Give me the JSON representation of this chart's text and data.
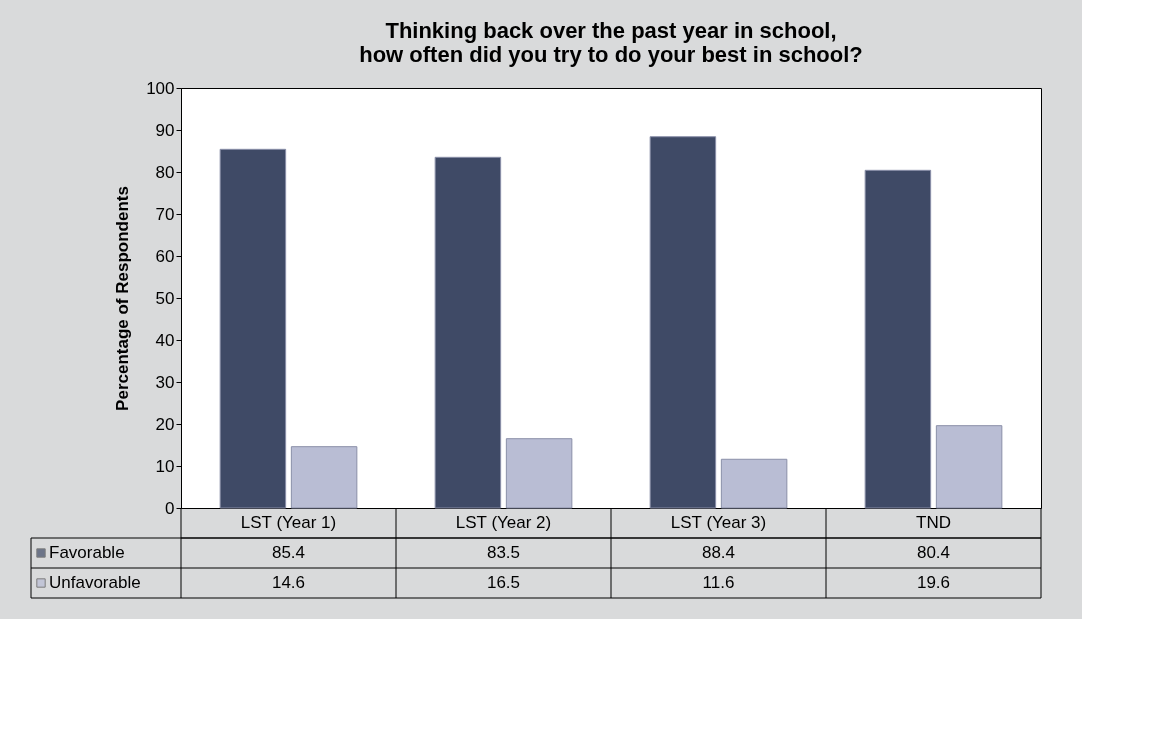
{
  "chart_data": {
    "type": "bar",
    "title": "Thinking back over the past year in school,\nhow often did you try to do your best in school?",
    "ylabel": "Percentage of Respondents",
    "categories": [
      "LST (Year 1)",
      "LST (Year 2)",
      "LST (Year 3)",
      "TND"
    ],
    "series": [
      {
        "name": "Favorable",
        "color": "#3f4a66",
        "values": [
          85.4,
          83.5,
          88.4,
          80.4
        ]
      },
      {
        "name": "Unfavorable",
        "color": "#b9bdd4",
        "values": [
          14.6,
          16.5,
          11.6,
          19.6
        ]
      }
    ],
    "ylim": [
      0,
      100
    ],
    "yticks": [
      0,
      10,
      20,
      30,
      40,
      50,
      60,
      70,
      80,
      90,
      100
    ],
    "grid": false,
    "legend": "bottom",
    "data_labels": true
  }
}
